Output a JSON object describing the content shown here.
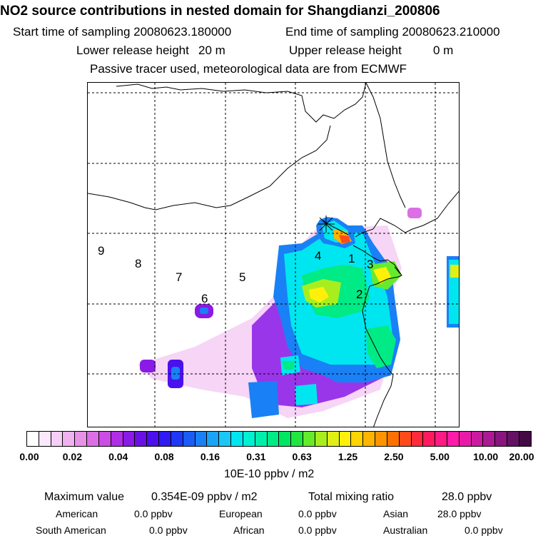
{
  "header": {
    "title": "NO2 source contributions in nested domain for Shangdianzi_200806",
    "start_label": "Start time of sampling 20080623.180000",
    "end_label": "End time of sampling 20080623.210000",
    "lower_label": "Lower release height",
    "lower_value": "20 m",
    "upper_label": "Upper release height",
    "upper_value": "0 m",
    "note": "Passive tracer used, meteorological data are from ECMWF"
  },
  "map": {
    "region_labels": [
      "1",
      "2",
      "3",
      "4",
      "5",
      "6",
      "7",
      "8",
      "9"
    ],
    "station_marker": "Shangdianzi"
  },
  "colorbar": {
    "ticks": [
      "0.00",
      "0.02",
      "0.04",
      "0.08",
      "0.16",
      "0.31",
      "0.63",
      "1.25",
      "2.50",
      "5.00",
      "10.00",
      "20.00"
    ],
    "colors": [
      "#ffffff",
      "#fce8fc",
      "#f6cef6",
      "#efb2ef",
      "#e792e7",
      "#dc6fe6",
      "#cc4ce6",
      "#b02ee6",
      "#8a1ae6",
      "#6a10e6",
      "#4a10ee",
      "#2f1af2",
      "#1f38f5",
      "#1a5cf5",
      "#1a80f5",
      "#1aa4f5",
      "#1ac8f5",
      "#00e6f0",
      "#00f0d2",
      "#00eeac",
      "#00ea86",
      "#00e660",
      "#20e640",
      "#66ea2c",
      "#a8ee1e",
      "#e0f014",
      "#fff00a",
      "#ffd400",
      "#ffb400",
      "#ff9400",
      "#ff7000",
      "#ff4a1a",
      "#ff2a3a",
      "#ff1a60",
      "#ff1a86",
      "#ff1aa8",
      "#ea1aa8",
      "#cc1aa0",
      "#aa1a94",
      "#88167e",
      "#641264",
      "#440a44"
    ],
    "unit": "10E-10 ppbv / m2"
  },
  "stats": {
    "max_label": "Maximum value",
    "max_value": "0.354E-09 ppbv / m2",
    "total_label": "Total mixing ratio",
    "total_value": "28.0 ppbv",
    "regions": [
      {
        "name": "American",
        "value": "0.0 ppbv"
      },
      {
        "name": "European",
        "value": "0.0 ppbv"
      },
      {
        "name": "Asian",
        "value": "28.0 ppbv"
      },
      {
        "name": "South American",
        "value": "0.0 ppbv"
      },
      {
        "name": "African",
        "value": "0.0 ppbv"
      },
      {
        "name": "Australian",
        "value": "0.0 ppbv"
      }
    ]
  }
}
